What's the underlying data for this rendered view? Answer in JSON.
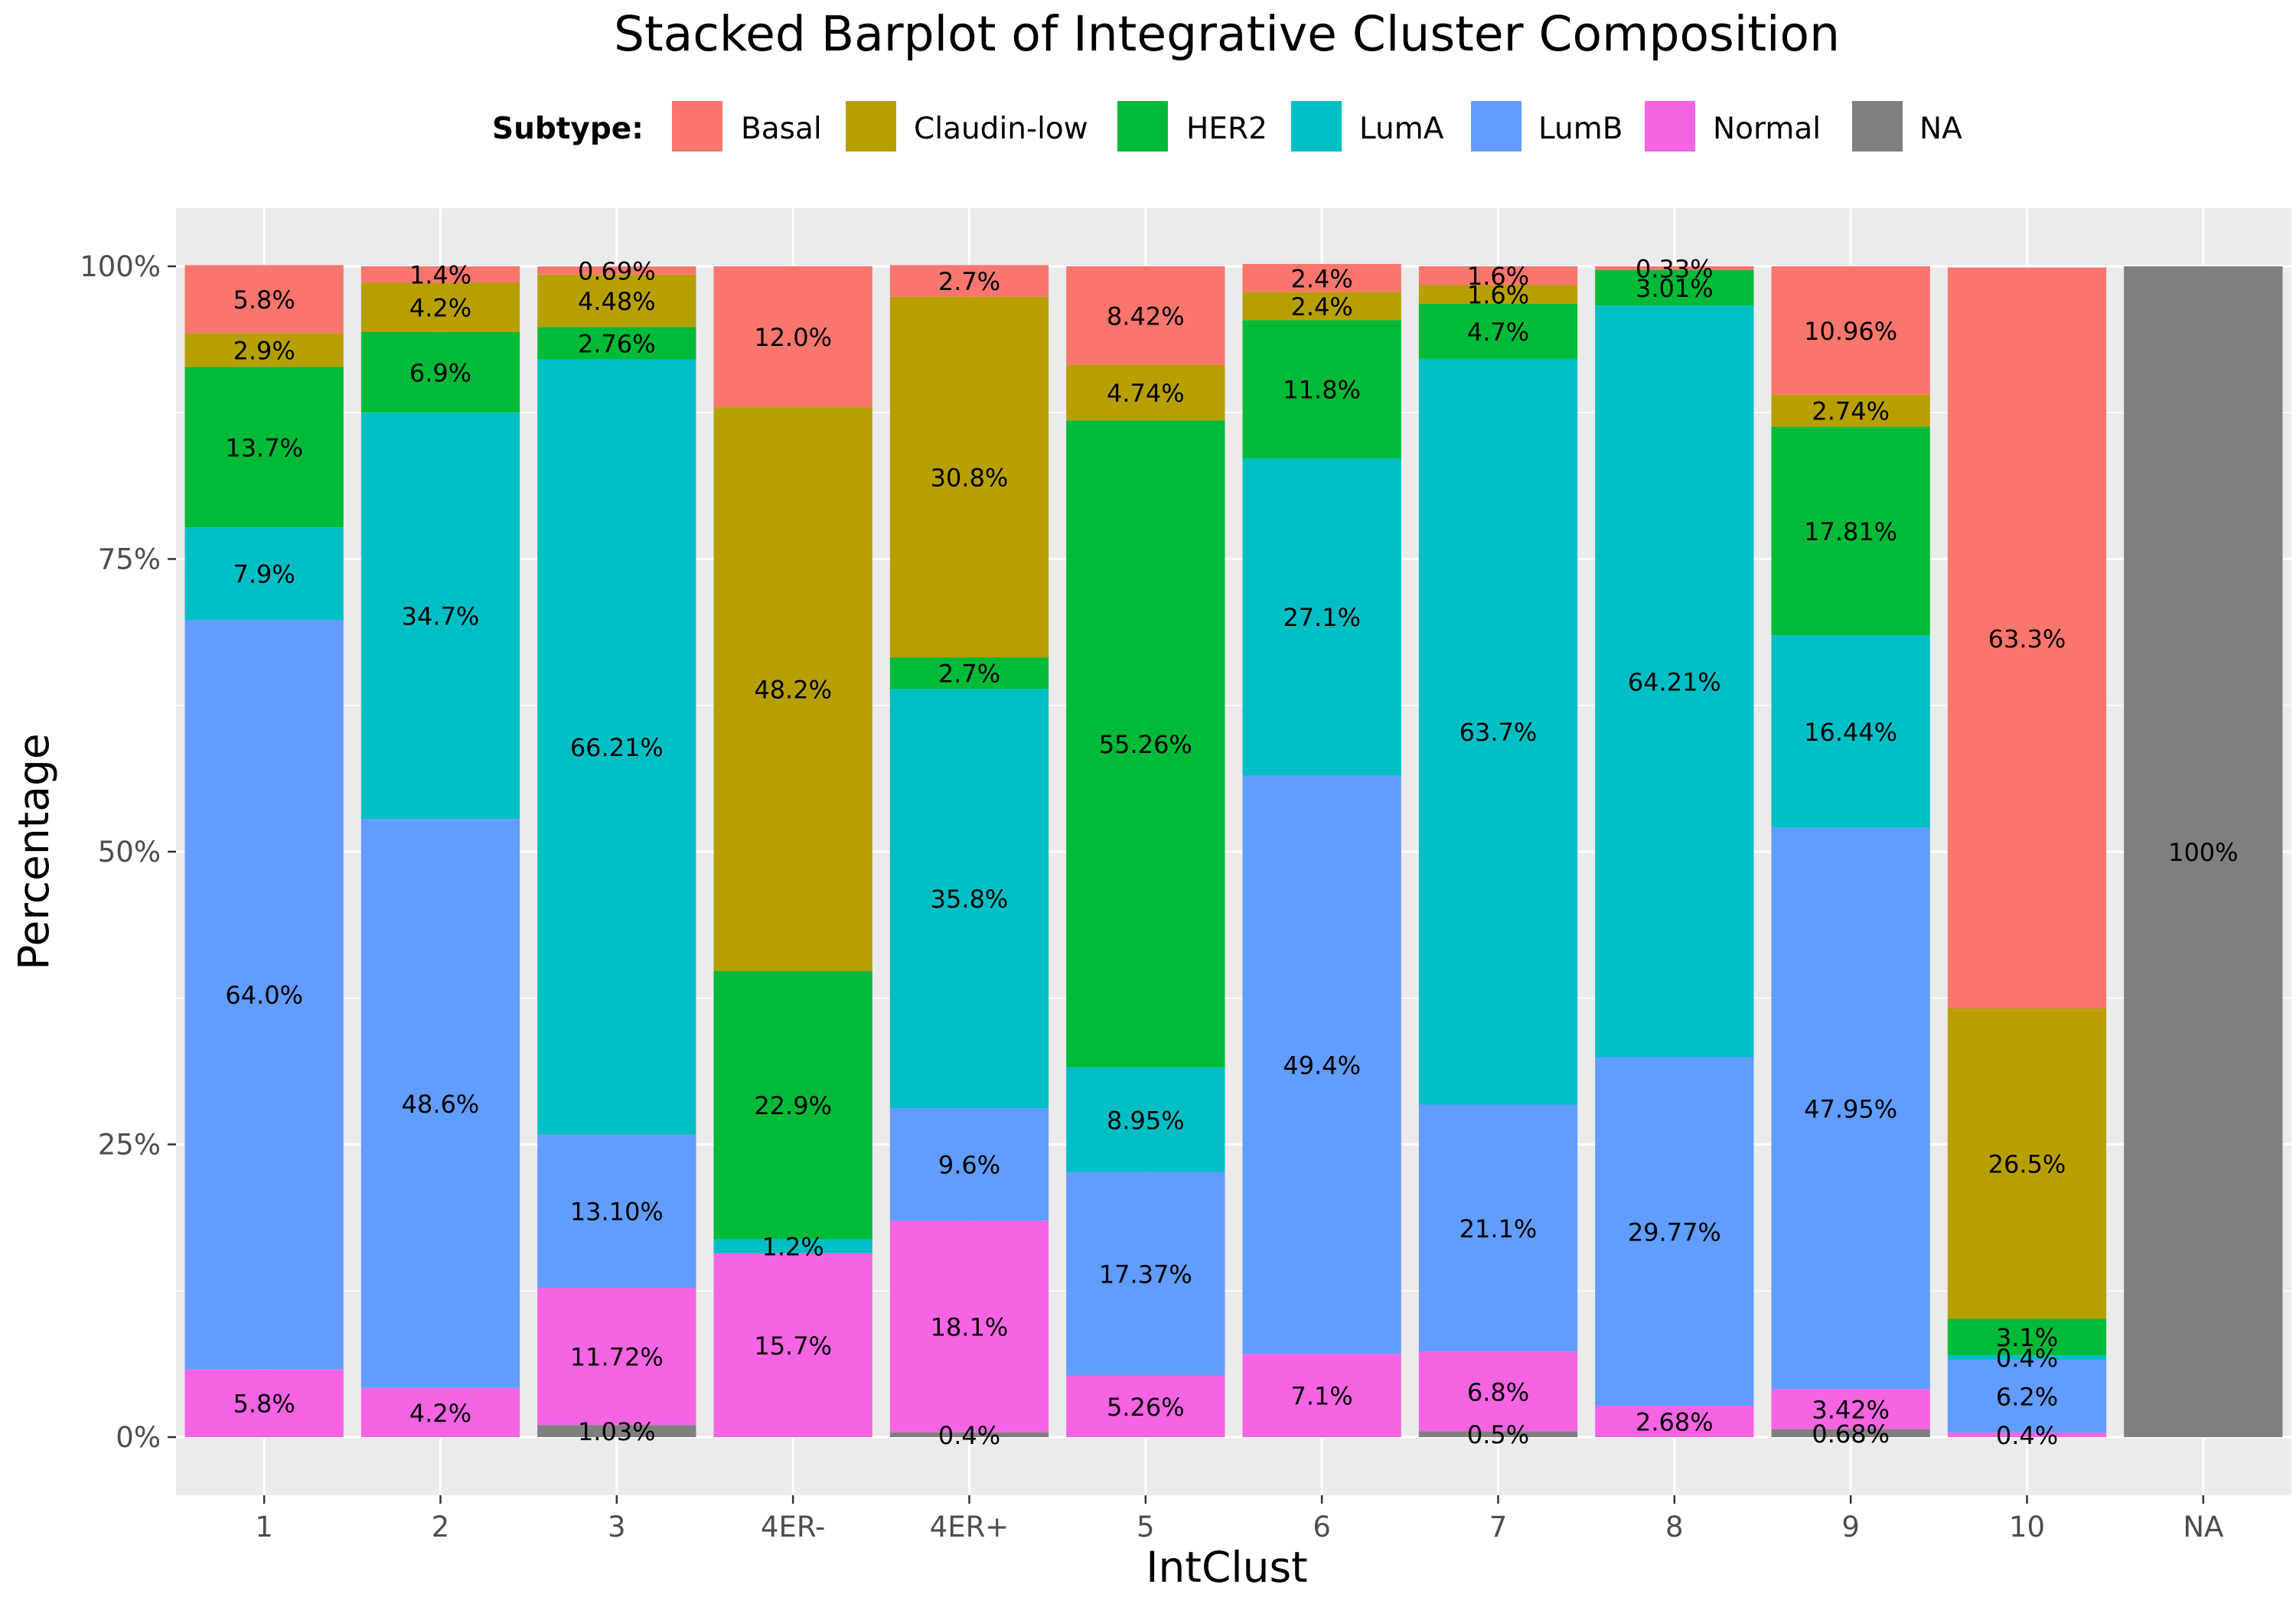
{
  "chart_data": {
    "type": "bar",
    "stacked": true,
    "title": "Stacked Barplot of Integrative Cluster Composition",
    "xlabel": "IntClust",
    "ylabel": "Percentage",
    "ylim": [
      0,
      100
    ],
    "y_ticks": [
      "0%",
      "25%",
      "50%",
      "75%",
      "100%"
    ],
    "grid": true,
    "legend": {
      "title": "Subtype:",
      "position": "top"
    },
    "categories": [
      "1",
      "2",
      "3",
      "4ER-",
      "4ER+",
      "5",
      "6",
      "7",
      "8",
      "9",
      "10",
      "NA"
    ],
    "series": [
      {
        "name": "Normal",
        "color": "#F564E3",
        "values": [
          5.8,
          4.2,
          11.72,
          15.7,
          18.1,
          5.26,
          7.1,
          6.8,
          2.68,
          3.42,
          0.4,
          0
        ],
        "labels": [
          "5.8%",
          "4.2%",
          "11.72%",
          "15.7%",
          "18.1%",
          "5.26%",
          "7.1%",
          "6.8%",
          "2.68%",
          "3.42%",
          "0.4%",
          ""
        ]
      },
      {
        "name": "LumB",
        "color": "#619CFF",
        "values": [
          64.0,
          48.6,
          13.1,
          0,
          9.6,
          17.37,
          49.4,
          21.1,
          29.77,
          47.95,
          6.2,
          0
        ],
        "labels": [
          "64.0%",
          "48.6%",
          "13.10%",
          "",
          "9.6%",
          "17.37%",
          "49.4%",
          "21.1%",
          "29.77%",
          "47.95%",
          "6.2%",
          ""
        ]
      },
      {
        "name": "LumA",
        "color": "#00BFC4",
        "values": [
          7.9,
          34.7,
          66.21,
          1.2,
          35.8,
          8.95,
          27.1,
          63.7,
          64.21,
          16.44,
          0.4,
          0
        ],
        "labels": [
          "7.9%",
          "34.7%",
          "66.21%",
          "1.2%",
          "35.8%",
          "8.95%",
          "27.1%",
          "63.7%",
          "64.21%",
          "16.44%",
          "0.4%",
          ""
        ]
      },
      {
        "name": "HER2",
        "color": "#00BA38",
        "values": [
          13.7,
          6.9,
          2.76,
          22.9,
          2.7,
          55.26,
          11.8,
          4.7,
          3.01,
          17.81,
          3.1,
          0
        ],
        "labels": [
          "13.7%",
          "6.9%",
          "2.76%",
          "22.9%",
          "2.7%",
          "55.26%",
          "11.8%",
          "4.7%",
          "3.01%",
          "17.81%",
          "3.1%",
          ""
        ]
      },
      {
        "name": "Claudin-low",
        "color": "#B79F00",
        "values": [
          2.9,
          4.2,
          4.48,
          48.2,
          30.8,
          4.74,
          2.4,
          1.6,
          0,
          2.74,
          26.5,
          0
        ],
        "labels": [
          "2.9%",
          "4.2%",
          "4.48%",
          "48.2%",
          "30.8%",
          "4.74%",
          "2.4%",
          "1.6%",
          "",
          "2.74%",
          "26.5%",
          ""
        ]
      },
      {
        "name": "Basal",
        "color": "#F8766D",
        "values": [
          5.8,
          1.4,
          0.69,
          12.0,
          2.7,
          8.42,
          2.4,
          1.6,
          0.33,
          10.96,
          63.3,
          0
        ],
        "labels": [
          "5.8%",
          "1.4%",
          "0.69%",
          "12.0%",
          "2.7%",
          "8.42%",
          "2.4%",
          "1.6%",
          "0.33%",
          "10.96%",
          "63.3%",
          ""
        ]
      },
      {
        "name": "NA",
        "color": "#7F7F7F",
        "values": [
          0,
          0,
          1.03,
          0,
          0.4,
          0,
          0,
          0.5,
          0,
          0.68,
          0,
          100
        ],
        "labels": [
          "",
          "",
          "1.03%",
          "",
          "0.4%",
          "",
          "",
          "0.5%",
          "",
          "0.68%",
          "",
          "100%"
        ]
      }
    ],
    "stack_order": [
      "NA",
      "Normal",
      "LumB",
      "LumA",
      "HER2",
      "Claudin-low",
      "Basal"
    ],
    "legend_order": [
      "Basal",
      "Claudin-low",
      "HER2",
      "LumA",
      "LumB",
      "Normal",
      "NA"
    ]
  }
}
